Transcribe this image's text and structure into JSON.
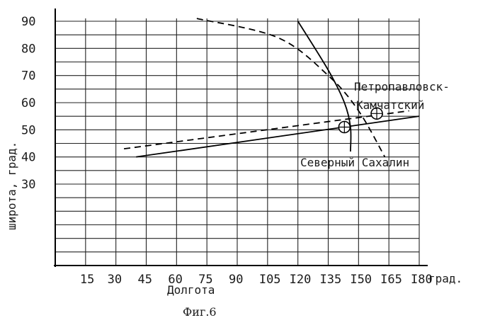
{
  "chart_data": {
    "type": "line",
    "title": "",
    "caption": "Фиг.6",
    "xlabel": "Долгота",
    "ylabel": "широта, град.",
    "x_unit": "град.",
    "xlim": [
      0,
      180
    ],
    "ylim": [
      0,
      90
    ],
    "x_ticks": [
      15,
      30,
      45,
      60,
      75,
      90,
      105,
      120,
      135,
      150,
      165,
      180
    ],
    "x_tick_labels": [
      "15",
      "30",
      "45",
      "60",
      "75",
      "90",
      "I05",
      "I20",
      "I35",
      "I50",
      "I65",
      "I80"
    ],
    "y_ticks": [
      30,
      40,
      50,
      60,
      70,
      80,
      90
    ],
    "y_tick_labels": [
      "30",
      "40",
      "50",
      "60",
      "70",
      "80",
      "90"
    ],
    "grid": true,
    "series": [
      {
        "style": "solid",
        "x": [
          40,
          180
        ],
        "y": [
          40,
          55
        ]
      },
      {
        "style": "dashed",
        "x": [
          34,
          175
        ],
        "y": [
          43,
          57
        ]
      },
      {
        "style": "solid",
        "x": [
          120,
          135,
          143,
          146,
          146
        ],
        "y": [
          90,
          72,
          60,
          51,
          42
        ]
      },
      {
        "style": "dashed",
        "x": [
          70,
          110,
          135,
          150,
          163
        ],
        "y": [
          91,
          84,
          70,
          57,
          40
        ]
      }
    ],
    "points": [
      {
        "name": "Северный Сахалин",
        "x": 143,
        "y": 51
      },
      {
        "name": "Петропавловск-Камчатский",
        "x": 159,
        "y": 56
      }
    ]
  }
}
